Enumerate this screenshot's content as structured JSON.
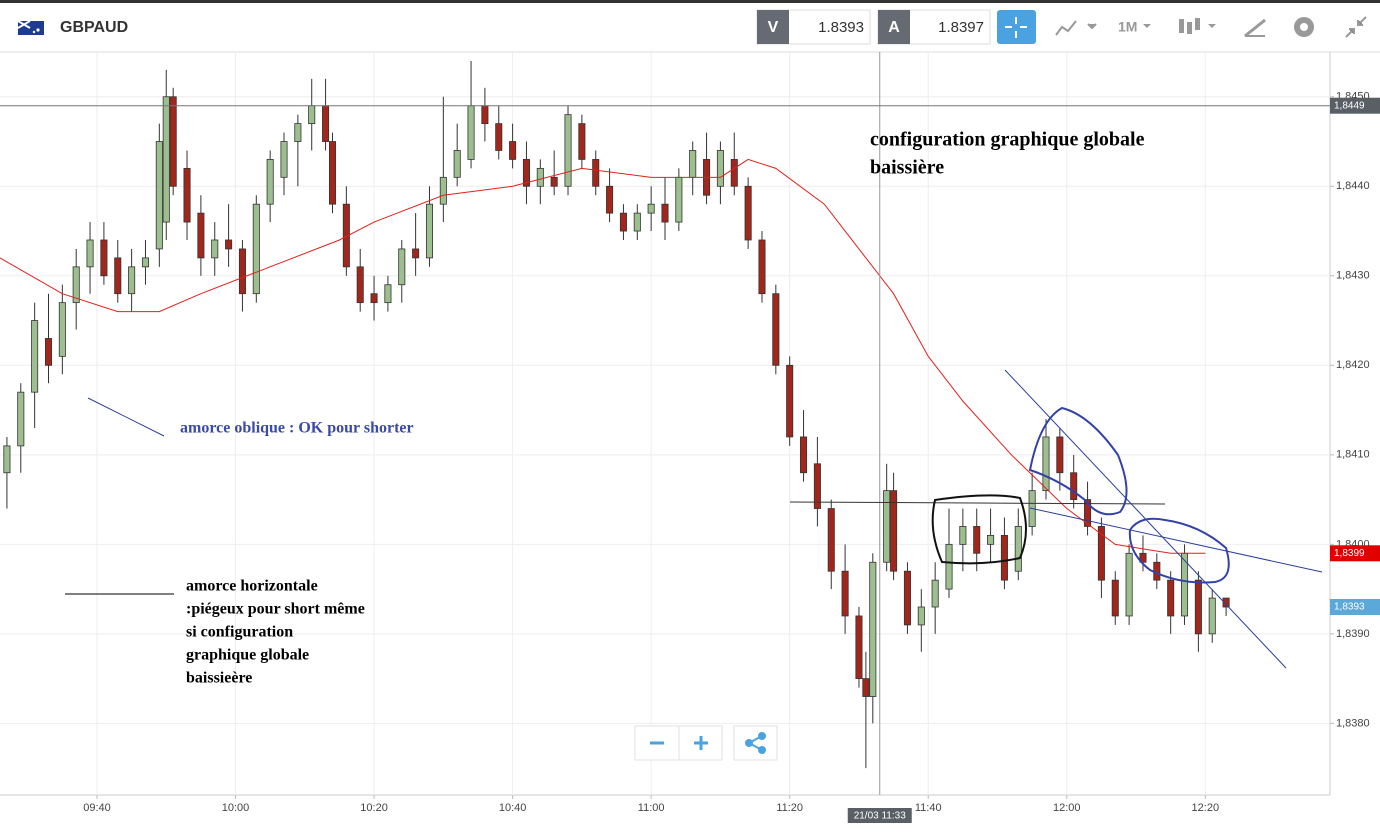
{
  "toolbar": {
    "symbol": "GBPAUD",
    "bid_tag": "V",
    "bid": "1.8393",
    "ask_tag": "A",
    "ask": "1.8397",
    "period": "1M"
  },
  "chart_data": {
    "type": "candlestick",
    "xlim": [
      566,
      758
    ],
    "ylim": [
      1.8372,
      1.8455
    ],
    "xticks": [
      {
        "value": 580,
        "label": "09:40"
      },
      {
        "value": 600,
        "label": "10:00"
      },
      {
        "value": 620,
        "label": "10:20"
      },
      {
        "value": 640,
        "label": "10:40"
      },
      {
        "value": 660,
        "label": "11:00"
      },
      {
        "value": 680,
        "label": "11:20"
      },
      {
        "value": 700,
        "label": "11:40"
      },
      {
        "value": 720,
        "label": "12:00"
      },
      {
        "value": 740,
        "label": "12:20"
      }
    ],
    "yticks": [
      {
        "value": 1.838,
        "label": "1,8380"
      },
      {
        "value": 1.839,
        "label": "1,8390"
      },
      {
        "value": 1.84,
        "label": "1,8400"
      },
      {
        "value": 1.841,
        "label": "1,8410"
      },
      {
        "value": 1.842,
        "label": "1,8420"
      },
      {
        "value": 1.843,
        "label": "1,8430"
      },
      {
        "value": 1.844,
        "label": "1,8440"
      },
      {
        "value": 1.845,
        "label": "1,8450"
      }
    ],
    "grid": true,
    "up_color": "#9dbf8f",
    "down_color": "#a1271c",
    "candles": [
      [
        567,
        1.8408,
        1.8412,
        1.8404,
        1.8411
      ],
      [
        569,
        1.8411,
        1.8418,
        1.8408,
        1.8417
      ],
      [
        571,
        1.8417,
        1.8427,
        1.8413,
        1.8425
      ],
      [
        573,
        1.8423,
        1.8428,
        1.8418,
        1.842
      ],
      [
        575,
        1.8421,
        1.8429,
        1.8419,
        1.8427
      ],
      [
        577,
        1.8427,
        1.8433,
        1.8424,
        1.8431
      ],
      [
        579,
        1.8431,
        1.8436,
        1.8428,
        1.8434
      ],
      [
        581,
        1.8434,
        1.8436,
        1.8429,
        1.843
      ],
      [
        583,
        1.8432,
        1.8434,
        1.8427,
        1.8428
      ],
      [
        585,
        1.8428,
        1.8433,
        1.8426,
        1.8431
      ],
      [
        587,
        1.8431,
        1.8434,
        1.8429,
        1.8432
      ],
      [
        589,
        1.8433,
        1.8447,
        1.8431,
        1.8445
      ],
      [
        590,
        1.8436,
        1.8453,
        1.8434,
        1.845
      ],
      [
        591,
        1.845,
        1.8451,
        1.8439,
        1.844
      ],
      [
        593,
        1.8442,
        1.8444,
        1.8434,
        1.8436
      ],
      [
        595,
        1.8437,
        1.8439,
        1.843,
        1.8432
      ],
      [
        597,
        1.8432,
        1.8436,
        1.843,
        1.8434
      ],
      [
        599,
        1.8434,
        1.8438,
        1.8431,
        1.8433
      ],
      [
        601,
        1.8433,
        1.8434,
        1.8426,
        1.8428
      ],
      [
        603,
        1.8428,
        1.8439,
        1.8427,
        1.8438
      ],
      [
        605,
        1.8438,
        1.8444,
        1.8436,
        1.8443
      ],
      [
        607,
        1.8441,
        1.8446,
        1.8439,
        1.8445
      ],
      [
        609,
        1.8445,
        1.8448,
        1.844,
        1.8447
      ],
      [
        611,
        1.8447,
        1.8452,
        1.8444,
        1.8449
      ],
      [
        613,
        1.8449,
        1.8452,
        1.8444,
        1.8445
      ],
      [
        614,
        1.8445,
        1.8446,
        1.8437,
        1.8438
      ],
      [
        616,
        1.8438,
        1.844,
        1.843,
        1.8431
      ],
      [
        618,
        1.8431,
        1.8433,
        1.8426,
        1.8427
      ],
      [
        620,
        1.8428,
        1.843,
        1.8425,
        1.8427
      ],
      [
        622,
        1.8427,
        1.843,
        1.8426,
        1.8429
      ],
      [
        624,
        1.8429,
        1.8434,
        1.8427,
        1.8433
      ],
      [
        626,
        1.8433,
        1.8437,
        1.843,
        1.8432
      ],
      [
        628,
        1.8432,
        1.844,
        1.8431,
        1.8438
      ],
      [
        630,
        1.8438,
        1.845,
        1.8436,
        1.8441
      ],
      [
        632,
        1.8441,
        1.8447,
        1.844,
        1.8444
      ],
      [
        634,
        1.8443,
        1.8454,
        1.8442,
        1.8449
      ],
      [
        636,
        1.8449,
        1.8451,
        1.8445,
        1.8447
      ],
      [
        638,
        1.8447,
        1.8449,
        1.8443,
        1.8444
      ],
      [
        640,
        1.8445,
        1.8447,
        1.8442,
        1.8443
      ],
      [
        642,
        1.8443,
        1.8445,
        1.8438,
        1.844
      ],
      [
        644,
        1.844,
        1.8443,
        1.8438,
        1.8442
      ],
      [
        646,
        1.8441,
        1.8444,
        1.8439,
        1.844
      ],
      [
        648,
        1.844,
        1.8449,
        1.8439,
        1.8448
      ],
      [
        650,
        1.8447,
        1.8448,
        1.8442,
        1.8443
      ],
      [
        652,
        1.8443,
        1.8444,
        1.8439,
        1.844
      ],
      [
        654,
        1.844,
        1.8442,
        1.8436,
        1.8437
      ],
      [
        656,
        1.8437,
        1.8438,
        1.8434,
        1.8435
      ],
      [
        658,
        1.8435,
        1.8438,
        1.8434,
        1.8437
      ],
      [
        660,
        1.8437,
        1.844,
        1.8435,
        1.8438
      ],
      [
        662,
        1.8438,
        1.8441,
        1.8434,
        1.8436
      ],
      [
        664,
        1.8436,
        1.8442,
        1.8435,
        1.8441
      ],
      [
        666,
        1.8441,
        1.8445,
        1.8439,
        1.8444
      ],
      [
        668,
        1.8443,
        1.8446,
        1.8438,
        1.8439
      ],
      [
        670,
        1.844,
        1.8445,
        1.8438,
        1.8444
      ],
      [
        672,
        1.8443,
        1.8446,
        1.8439,
        1.844
      ],
      [
        674,
        1.844,
        1.8441,
        1.8433,
        1.8434
      ],
      [
        676,
        1.8434,
        1.8435,
        1.8427,
        1.8428
      ],
      [
        678,
        1.8428,
        1.8429,
        1.8419,
        1.842
      ],
      [
        680,
        1.842,
        1.8421,
        1.8411,
        1.8412
      ],
      [
        682,
        1.8412,
        1.8415,
        1.8407,
        1.8408
      ],
      [
        684,
        1.8409,
        1.8412,
        1.8402,
        1.8404
      ],
      [
        686,
        1.8404,
        1.8405,
        1.8395,
        1.8397
      ],
      [
        688,
        1.8397,
        1.84,
        1.839,
        1.8392
      ],
      [
        690,
        1.8392,
        1.8393,
        1.8384,
        1.8385
      ],
      [
        691,
        1.8385,
        1.8388,
        1.8375,
        1.8383
      ],
      [
        692,
        1.8383,
        1.8399,
        1.838,
        1.8398
      ],
      [
        694,
        1.8398,
        1.8409,
        1.8397,
        1.8406
      ],
      [
        695,
        1.8406,
        1.8408,
        1.8396,
        1.8397
      ],
      [
        697,
        1.8397,
        1.8398,
        1.839,
        1.8391
      ],
      [
        699,
        1.8391,
        1.8395,
        1.8388,
        1.8393
      ],
      [
        701,
        1.8393,
        1.8398,
        1.839,
        1.8396
      ],
      [
        703,
        1.8395,
        1.8404,
        1.8394,
        1.84
      ],
      [
        705,
        1.84,
        1.8404,
        1.8397,
        1.8402
      ],
      [
        707,
        1.8402,
        1.8404,
        1.8397,
        1.8399
      ],
      [
        709,
        1.84,
        1.8404,
        1.8398,
        1.8401
      ],
      [
        711,
        1.8401,
        1.8403,
        1.8395,
        1.8396
      ],
      [
        713,
        1.8397,
        1.8404,
        1.8396,
        1.8402
      ],
      [
        715,
        1.8402,
        1.8408,
        1.8401,
        1.8406
      ],
      [
        717,
        1.8406,
        1.8414,
        1.8405,
        1.8412
      ],
      [
        719,
        1.8412,
        1.8413,
        1.8406,
        1.8408
      ],
      [
        721,
        1.8408,
        1.841,
        1.8404,
        1.8405
      ],
      [
        723,
        1.8405,
        1.8407,
        1.8401,
        1.8402
      ],
      [
        725,
        1.8402,
        1.8403,
        1.8394,
        1.8396
      ],
      [
        727,
        1.8396,
        1.8397,
        1.8391,
        1.8392
      ],
      [
        729,
        1.8392,
        1.84,
        1.8391,
        1.8399
      ],
      [
        731,
        1.8399,
        1.8401,
        1.8397,
        1.8398
      ],
      [
        733,
        1.8398,
        1.8399,
        1.8395,
        1.8396
      ],
      [
        735,
        1.8396,
        1.8397,
        1.839,
        1.8392
      ],
      [
        737,
        1.8392,
        1.84,
        1.8391,
        1.8399
      ],
      [
        739,
        1.8396,
        1.8397,
        1.8388,
        1.839
      ],
      [
        741,
        1.839,
        1.8395,
        1.8389,
        1.8394
      ],
      [
        743,
        1.8394,
        1.8394,
        1.8392,
        1.8393
      ]
    ],
    "moving_average": {
      "color": "#e3201b",
      "x": [
        566,
        575,
        583,
        589,
        595,
        605,
        615,
        620,
        630,
        640,
        650,
        660,
        670,
        674,
        678,
        685,
        690,
        695,
        700,
        705,
        712,
        720,
        727,
        735,
        740
      ],
      "values": [
        1.8432,
        1.8428,
        1.8426,
        1.8426,
        1.8428,
        1.8431,
        1.8434,
        1.8436,
        1.8439,
        1.844,
        1.8442,
        1.8441,
        1.8441,
        1.8443,
        1.8442,
        1.8438,
        1.8433,
        1.8428,
        1.8421,
        1.8416,
        1.841,
        1.8404,
        1.84,
        1.8399,
        1.8399
      ]
    },
    "crosshair": {
      "x": {
        "value": 693,
        "label": "21/03 11:33"
      },
      "y": {
        "value": 1.8449,
        "label": "1,8449"
      }
    },
    "price_marker": {
      "value": 1.8399,
      "label": "1,8399",
      "color": "#e00000"
    },
    "last_price": {
      "value": 1.8393,
      "label": "1,8393",
      "color": "#5aa9d8"
    },
    "annotations": {
      "trend": "configuration graphique globale",
      "trend_2": "baissière",
      "oblique": "amorce oblique : OK pour shorter",
      "horizontal": [
        "amorce horizontale",
        ":piégeux pour short même",
        "si configuration",
        "graphique globale",
        "baissieère"
      ]
    }
  }
}
